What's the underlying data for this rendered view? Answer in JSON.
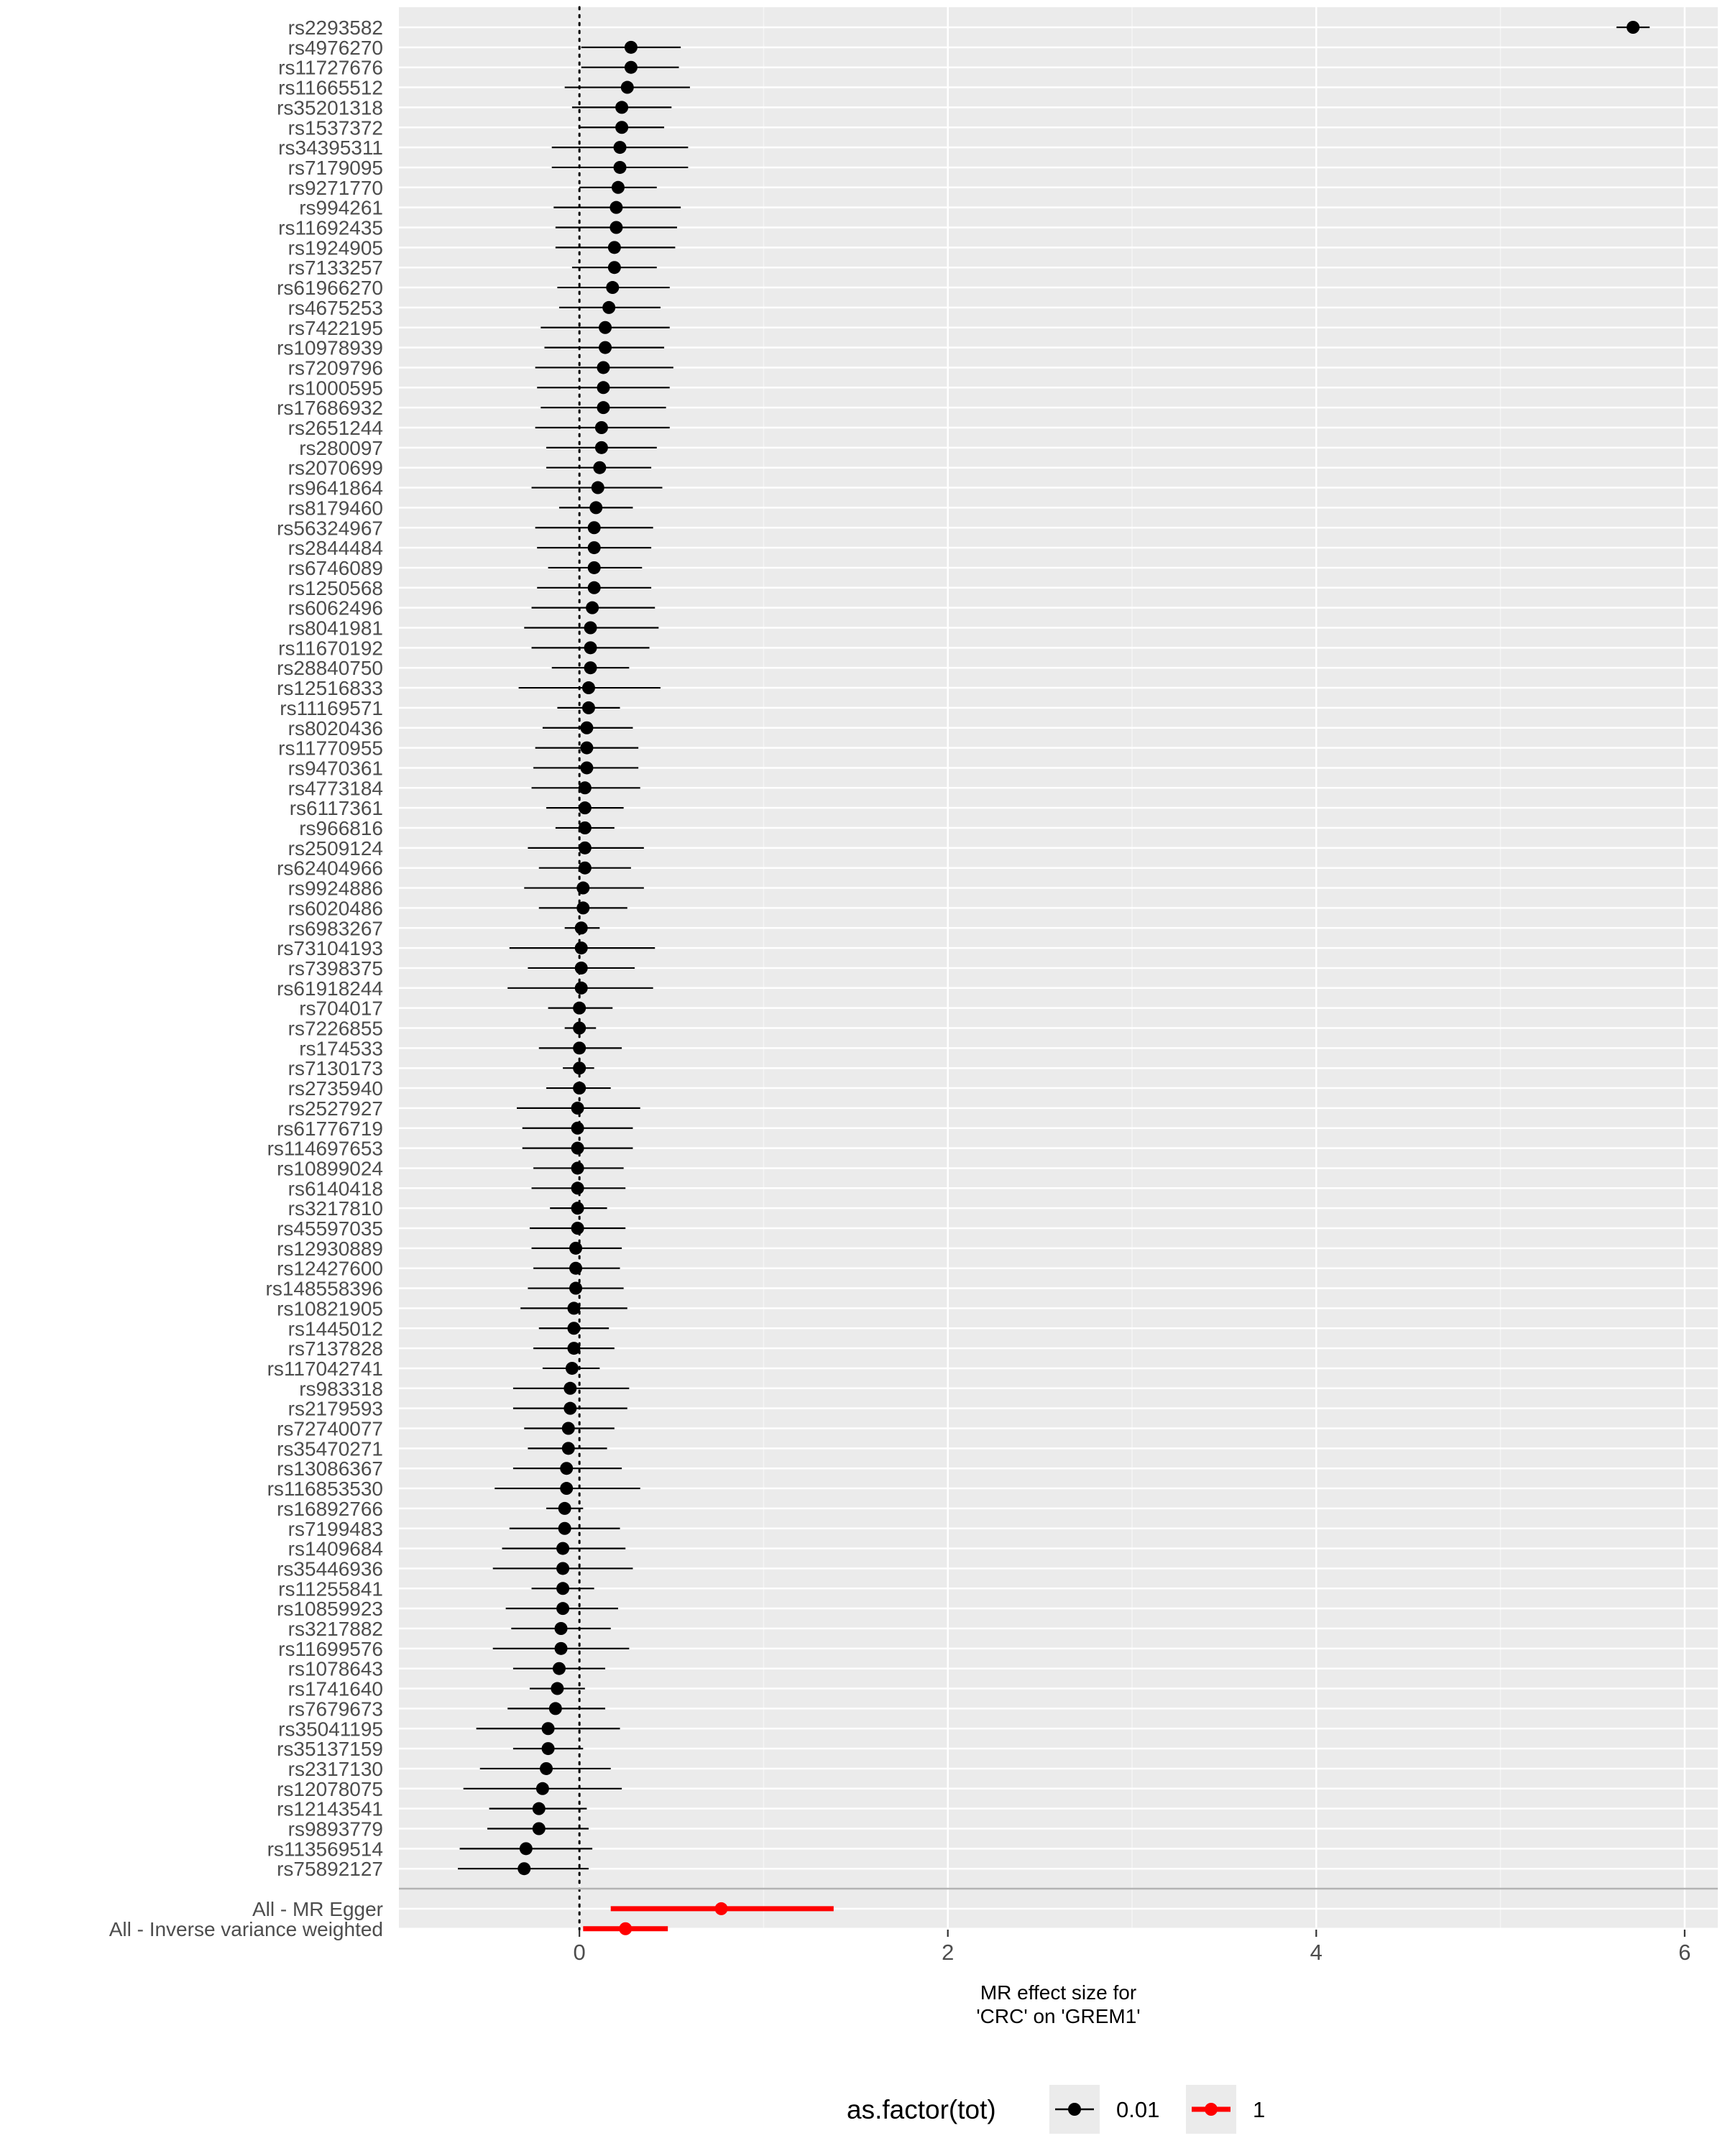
{
  "chart_data": {
    "type": "forest",
    "xlabel_lines": [
      "MR effect size for",
      "'CRC' on 'GREM1'"
    ],
    "xlim": [
      -0.98,
      6.18
    ],
    "xticks": [
      0,
      2,
      4,
      6
    ],
    "reference_line_x": 0,
    "grid": true,
    "legend": {
      "title": "as.factor(tot)",
      "position": "bottom",
      "entries": [
        {
          "label": "0.01",
          "color": "#000000"
        },
        {
          "label": "1",
          "color": "#ff0000"
        }
      ]
    },
    "rows": [
      {
        "label": "rs2293582",
        "b": 5.72,
        "lo": 5.63,
        "hi": 5.81,
        "tot": "0.01"
      },
      {
        "label": "rs4976270",
        "b": 0.28,
        "lo": 0.01,
        "hi": 0.55,
        "tot": "0.01"
      },
      {
        "label": "rs11727676",
        "b": 0.28,
        "lo": 0.01,
        "hi": 0.54,
        "tot": "0.01"
      },
      {
        "label": "rs11665512",
        "b": 0.26,
        "lo": -0.08,
        "hi": 0.6,
        "tot": "0.01"
      },
      {
        "label": "rs35201318",
        "b": 0.23,
        "lo": -0.04,
        "hi": 0.5,
        "tot": "0.01"
      },
      {
        "label": "rs1537372",
        "b": 0.23,
        "lo": 0.0,
        "hi": 0.46,
        "tot": "0.01"
      },
      {
        "label": "rs34395311",
        "b": 0.22,
        "lo": -0.15,
        "hi": 0.59,
        "tot": "0.01"
      },
      {
        "label": "rs7179095",
        "b": 0.22,
        "lo": -0.15,
        "hi": 0.59,
        "tot": "0.01"
      },
      {
        "label": "rs9271770",
        "b": 0.21,
        "lo": 0.0,
        "hi": 0.42,
        "tot": "0.01"
      },
      {
        "label": "rs994261",
        "b": 0.2,
        "lo": -0.14,
        "hi": 0.55,
        "tot": "0.01"
      },
      {
        "label": "rs11692435",
        "b": 0.2,
        "lo": -0.13,
        "hi": 0.53,
        "tot": "0.01"
      },
      {
        "label": "rs1924905",
        "b": 0.19,
        "lo": -0.13,
        "hi": 0.52,
        "tot": "0.01"
      },
      {
        "label": "rs7133257",
        "b": 0.19,
        "lo": -0.04,
        "hi": 0.42,
        "tot": "0.01"
      },
      {
        "label": "rs61966270",
        "b": 0.18,
        "lo": -0.12,
        "hi": 0.49,
        "tot": "0.01"
      },
      {
        "label": "rs4675253",
        "b": 0.16,
        "lo": -0.11,
        "hi": 0.44,
        "tot": "0.01"
      },
      {
        "label": "rs7422195",
        "b": 0.14,
        "lo": -0.21,
        "hi": 0.49,
        "tot": "0.01"
      },
      {
        "label": "rs10978939",
        "b": 0.14,
        "lo": -0.19,
        "hi": 0.46,
        "tot": "0.01"
      },
      {
        "label": "rs7209796",
        "b": 0.13,
        "lo": -0.24,
        "hi": 0.51,
        "tot": "0.01"
      },
      {
        "label": "rs1000595",
        "b": 0.13,
        "lo": -0.23,
        "hi": 0.49,
        "tot": "0.01"
      },
      {
        "label": "rs17686932",
        "b": 0.13,
        "lo": -0.21,
        "hi": 0.47,
        "tot": "0.01"
      },
      {
        "label": "rs2651244",
        "b": 0.12,
        "lo": -0.24,
        "hi": 0.49,
        "tot": "0.01"
      },
      {
        "label": "rs280097",
        "b": 0.12,
        "lo": -0.18,
        "hi": 0.42,
        "tot": "0.01"
      },
      {
        "label": "rs2070699",
        "b": 0.11,
        "lo": -0.18,
        "hi": 0.39,
        "tot": "0.01"
      },
      {
        "label": "rs9641864",
        "b": 0.1,
        "lo": -0.26,
        "hi": 0.45,
        "tot": "0.01"
      },
      {
        "label": "rs8179460",
        "b": 0.09,
        "lo": -0.11,
        "hi": 0.29,
        "tot": "0.01"
      },
      {
        "label": "rs56324967",
        "b": 0.08,
        "lo": -0.24,
        "hi": 0.4,
        "tot": "0.01"
      },
      {
        "label": "rs2844484",
        "b": 0.08,
        "lo": -0.23,
        "hi": 0.39,
        "tot": "0.01"
      },
      {
        "label": "rs6746089",
        "b": 0.08,
        "lo": -0.17,
        "hi": 0.34,
        "tot": "0.01"
      },
      {
        "label": "rs1250568",
        "b": 0.08,
        "lo": -0.23,
        "hi": 0.39,
        "tot": "0.01"
      },
      {
        "label": "rs6062496",
        "b": 0.07,
        "lo": -0.26,
        "hi": 0.41,
        "tot": "0.01"
      },
      {
        "label": "rs8041981",
        "b": 0.06,
        "lo": -0.3,
        "hi": 0.43,
        "tot": "0.01"
      },
      {
        "label": "rs11670192",
        "b": 0.06,
        "lo": -0.26,
        "hi": 0.38,
        "tot": "0.01"
      },
      {
        "label": "rs28840750",
        "b": 0.06,
        "lo": -0.15,
        "hi": 0.27,
        "tot": "0.01"
      },
      {
        "label": "rs12516833",
        "b": 0.05,
        "lo": -0.33,
        "hi": 0.44,
        "tot": "0.01"
      },
      {
        "label": "rs11169571",
        "b": 0.05,
        "lo": -0.12,
        "hi": 0.22,
        "tot": "0.01"
      },
      {
        "label": "rs8020436",
        "b": 0.04,
        "lo": -0.2,
        "hi": 0.29,
        "tot": "0.01"
      },
      {
        "label": "rs11770955",
        "b": 0.04,
        "lo": -0.24,
        "hi": 0.32,
        "tot": "0.01"
      },
      {
        "label": "rs9470361",
        "b": 0.04,
        "lo": -0.25,
        "hi": 0.32,
        "tot": "0.01"
      },
      {
        "label": "rs4773184",
        "b": 0.03,
        "lo": -0.26,
        "hi": 0.33,
        "tot": "0.01"
      },
      {
        "label": "rs6117361",
        "b": 0.03,
        "lo": -0.18,
        "hi": 0.24,
        "tot": "0.01"
      },
      {
        "label": "rs966816",
        "b": 0.03,
        "lo": -0.13,
        "hi": 0.19,
        "tot": "0.01"
      },
      {
        "label": "rs2509124",
        "b": 0.03,
        "lo": -0.28,
        "hi": 0.35,
        "tot": "0.01"
      },
      {
        "label": "rs62404966",
        "b": 0.03,
        "lo": -0.22,
        "hi": 0.28,
        "tot": "0.01"
      },
      {
        "label": "rs9924886",
        "b": 0.02,
        "lo": -0.3,
        "hi": 0.35,
        "tot": "0.01"
      },
      {
        "label": "rs6020486",
        "b": 0.02,
        "lo": -0.22,
        "hi": 0.26,
        "tot": "0.01"
      },
      {
        "label": "rs6983267",
        "b": 0.01,
        "lo": -0.08,
        "hi": 0.11,
        "tot": "0.01"
      },
      {
        "label": "rs73104193",
        "b": 0.01,
        "lo": -0.38,
        "hi": 0.41,
        "tot": "0.01"
      },
      {
        "label": "rs7398375",
        "b": 0.01,
        "lo": -0.28,
        "hi": 0.3,
        "tot": "0.01"
      },
      {
        "label": "rs61918244",
        "b": 0.01,
        "lo": -0.39,
        "hi": 0.4,
        "tot": "0.01"
      },
      {
        "label": "rs704017",
        "b": 0.0,
        "lo": -0.17,
        "hi": 0.18,
        "tot": "0.01"
      },
      {
        "label": "rs7226855",
        "b": 0.0,
        "lo": -0.08,
        "hi": 0.09,
        "tot": "0.01"
      },
      {
        "label": "rs174533",
        "b": 0.0,
        "lo": -0.22,
        "hi": 0.23,
        "tot": "0.01"
      },
      {
        "label": "rs7130173",
        "b": -0.0,
        "lo": -0.09,
        "hi": 0.08,
        "tot": "0.01"
      },
      {
        "label": "rs2735940",
        "b": -0.0,
        "lo": -0.18,
        "hi": 0.17,
        "tot": "0.01"
      },
      {
        "label": "rs2527927",
        "b": -0.01,
        "lo": -0.34,
        "hi": 0.33,
        "tot": "0.01"
      },
      {
        "label": "rs61776719",
        "b": -0.01,
        "lo": -0.31,
        "hi": 0.29,
        "tot": "0.01"
      },
      {
        "label": "rs114697653",
        "b": -0.01,
        "lo": -0.31,
        "hi": 0.29,
        "tot": "0.01"
      },
      {
        "label": "rs10899024",
        "b": -0.01,
        "lo": -0.25,
        "hi": 0.24,
        "tot": "0.01"
      },
      {
        "label": "rs6140418",
        "b": -0.01,
        "lo": -0.26,
        "hi": 0.25,
        "tot": "0.01"
      },
      {
        "label": "rs3217810",
        "b": -0.01,
        "lo": -0.16,
        "hi": 0.15,
        "tot": "0.01"
      },
      {
        "label": "rs45597035",
        "b": -0.01,
        "lo": -0.27,
        "hi": 0.25,
        "tot": "0.01"
      },
      {
        "label": "rs12930889",
        "b": -0.02,
        "lo": -0.26,
        "hi": 0.23,
        "tot": "0.01"
      },
      {
        "label": "rs12427600",
        "b": -0.02,
        "lo": -0.25,
        "hi": 0.22,
        "tot": "0.01"
      },
      {
        "label": "rs148558396",
        "b": -0.02,
        "lo": -0.28,
        "hi": 0.24,
        "tot": "0.01"
      },
      {
        "label": "rs10821905",
        "b": -0.03,
        "lo": -0.32,
        "hi": 0.26,
        "tot": "0.01"
      },
      {
        "label": "rs1445012",
        "b": -0.03,
        "lo": -0.22,
        "hi": 0.16,
        "tot": "0.01"
      },
      {
        "label": "rs7137828",
        "b": -0.03,
        "lo": -0.25,
        "hi": 0.19,
        "tot": "0.01"
      },
      {
        "label": "rs117042741",
        "b": -0.04,
        "lo": -0.2,
        "hi": 0.11,
        "tot": "0.01"
      },
      {
        "label": "rs983318",
        "b": -0.05,
        "lo": -0.36,
        "hi": 0.27,
        "tot": "0.01"
      },
      {
        "label": "rs2179593",
        "b": -0.05,
        "lo": -0.36,
        "hi": 0.26,
        "tot": "0.01"
      },
      {
        "label": "rs72740077",
        "b": -0.06,
        "lo": -0.3,
        "hi": 0.19,
        "tot": "0.01"
      },
      {
        "label": "rs35470271",
        "b": -0.06,
        "lo": -0.28,
        "hi": 0.15,
        "tot": "0.01"
      },
      {
        "label": "rs13086367",
        "b": -0.07,
        "lo": -0.36,
        "hi": 0.23,
        "tot": "0.01"
      },
      {
        "label": "rs116853530",
        "b": -0.07,
        "lo": -0.46,
        "hi": 0.33,
        "tot": "0.01"
      },
      {
        "label": "rs16892766",
        "b": -0.08,
        "lo": -0.18,
        "hi": 0.02,
        "tot": "0.01"
      },
      {
        "label": "rs7199483",
        "b": -0.08,
        "lo": -0.38,
        "hi": 0.22,
        "tot": "0.01"
      },
      {
        "label": "rs1409684",
        "b": -0.09,
        "lo": -0.42,
        "hi": 0.25,
        "tot": "0.01"
      },
      {
        "label": "rs35446936",
        "b": -0.09,
        "lo": -0.47,
        "hi": 0.29,
        "tot": "0.01"
      },
      {
        "label": "rs11255841",
        "b": -0.09,
        "lo": -0.26,
        "hi": 0.08,
        "tot": "0.01"
      },
      {
        "label": "rs10859923",
        "b": -0.09,
        "lo": -0.4,
        "hi": 0.21,
        "tot": "0.01"
      },
      {
        "label": "rs3217882",
        "b": -0.1,
        "lo": -0.37,
        "hi": 0.17,
        "tot": "0.01"
      },
      {
        "label": "rs11699576",
        "b": -0.1,
        "lo": -0.47,
        "hi": 0.27,
        "tot": "0.01"
      },
      {
        "label": "rs1078643",
        "b": -0.11,
        "lo": -0.36,
        "hi": 0.14,
        "tot": "0.01"
      },
      {
        "label": "rs1741640",
        "b": -0.12,
        "lo": -0.27,
        "hi": 0.03,
        "tot": "0.01"
      },
      {
        "label": "rs7679673",
        "b": -0.13,
        "lo": -0.39,
        "hi": 0.14,
        "tot": "0.01"
      },
      {
        "label": "rs35041195",
        "b": -0.17,
        "lo": -0.56,
        "hi": 0.22,
        "tot": "0.01"
      },
      {
        "label": "rs35137159",
        "b": -0.17,
        "lo": -0.36,
        "hi": 0.02,
        "tot": "0.01"
      },
      {
        "label": "rs2317130",
        "b": -0.18,
        "lo": -0.54,
        "hi": 0.17,
        "tot": "0.01"
      },
      {
        "label": "rs12078075",
        "b": -0.2,
        "lo": -0.63,
        "hi": 0.23,
        "tot": "0.01"
      },
      {
        "label": "rs12143541",
        "b": -0.22,
        "lo": -0.49,
        "hi": 0.04,
        "tot": "0.01"
      },
      {
        "label": "rs9893779",
        "b": -0.22,
        "lo": -0.5,
        "hi": 0.05,
        "tot": "0.01"
      },
      {
        "label": "rs113569514",
        "b": -0.29,
        "lo": -0.65,
        "hi": 0.07,
        "tot": "0.01"
      },
      {
        "label": "rs75892127",
        "b": -0.3,
        "lo": -0.66,
        "hi": 0.05,
        "tot": "0.01"
      }
    ],
    "summary_rows": [
      {
        "label": "All - MR Egger",
        "b": 0.77,
        "lo": 0.17,
        "hi": 1.38,
        "tot": "1"
      },
      {
        "label": "All - Inverse variance weighted",
        "b": 0.25,
        "lo": 0.02,
        "hi": 0.48,
        "tot": "1"
      }
    ]
  }
}
